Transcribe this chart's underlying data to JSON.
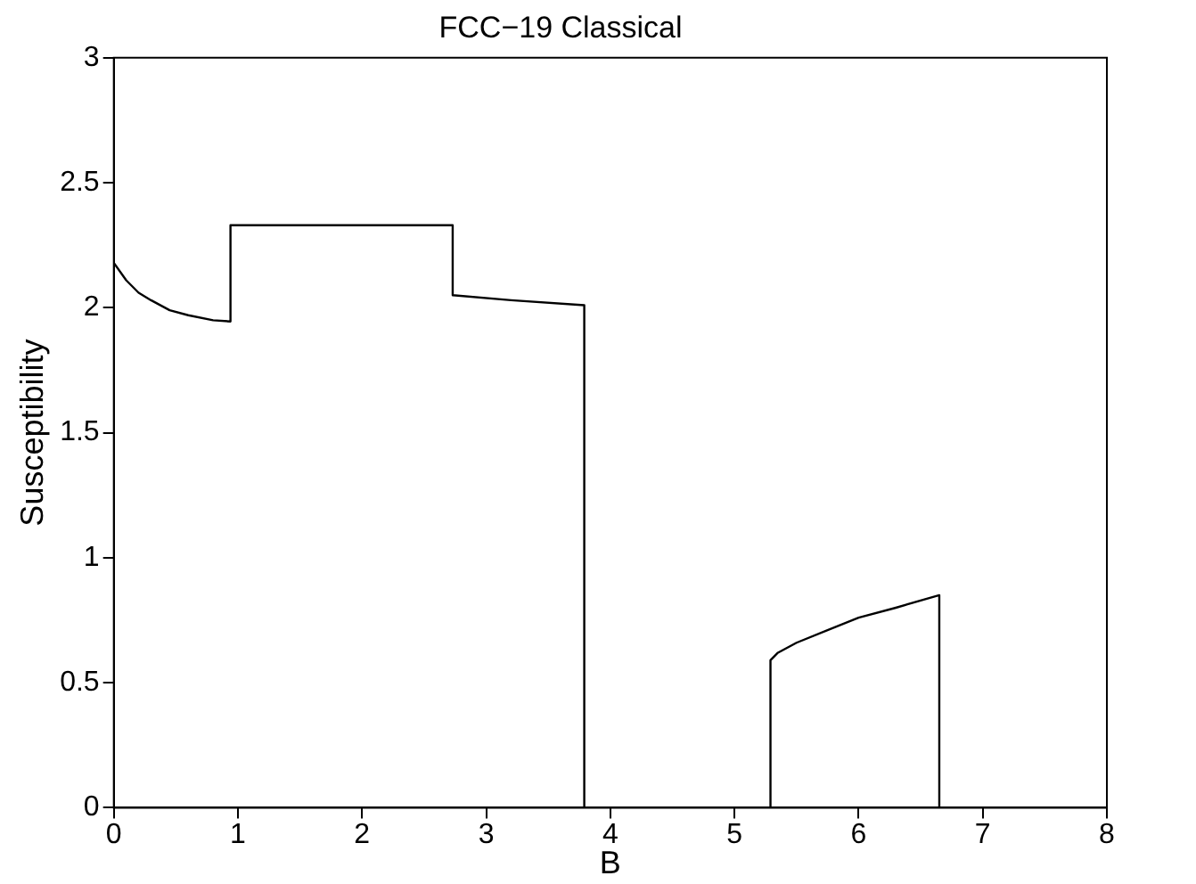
{
  "chart_data": {
    "type": "line",
    "title": "FCC−19 Classical",
    "xlabel": "B",
    "ylabel": "Susceptibility",
    "x": [
      0,
      0.1,
      0.2,
      0.3,
      0.45,
      0.6,
      0.8,
      0.94,
      0.94,
      2.73,
      2.73,
      3.2,
      3.79,
      3.79,
      5.29,
      5.29,
      5.35,
      5.5,
      5.75,
      6.0,
      6.3,
      6.65,
      6.65,
      8
    ],
    "series": [
      {
        "color": "#000000",
        "values": [
          2.18,
          2.11,
          2.06,
          2.03,
          1.99,
          1.97,
          1.95,
          1.945,
          2.33,
          2.33,
          2.05,
          2.03,
          2.01,
          0,
          0,
          0.59,
          0.62,
          0.66,
          0.71,
          0.76,
          0.8,
          0.85,
          0,
          0
        ]
      }
    ],
    "xlim": [
      0,
      8
    ],
    "xticks": [
      0,
      1,
      2,
      3,
      4,
      5,
      6,
      7,
      8
    ],
    "ylim": [
      0,
      3
    ],
    "yticks": [
      0,
      0.5,
      1,
      1.5,
      2,
      2.5,
      3
    ],
    "grid": false,
    "legend": false,
    "marker": "none",
    "line_style": "solid"
  }
}
